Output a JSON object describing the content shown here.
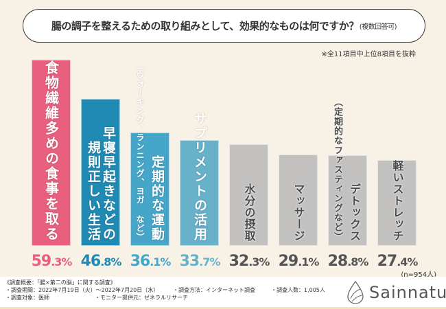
{
  "title": "腸の調子を整えるための取り組みとして、効果的なものは何ですか？",
  "title_suffix": "(複数回答可)",
  "note": "※全11項目中上位8項目を抜粋",
  "sample": "(n=954人)",
  "chart_data": {
    "type": "bar",
    "categories": [
      "食物繊維多めの食事を取る",
      "早寝早起きなどの規則正しい生活",
      "定期的な運動",
      "サプリメントの活用",
      "水分の摂取",
      "マッサージ",
      "デトックス",
      "軽いストレッチ"
    ],
    "sub_labels": [
      "",
      "",
      "（ウォーキング、ランニング、ヨガ など）",
      "",
      "",
      "",
      "（定期的なファスティングなど）",
      ""
    ],
    "values": [
      59.3,
      46.8,
      36.1,
      33.7,
      32.3,
      29.1,
      28.8,
      27.4
    ],
    "value_labels": [
      "59.3%",
      "46.8%",
      "36.1%",
      "33.7%",
      "32.3%",
      "29.1%",
      "28.8%",
      "27.4%"
    ],
    "colors": [
      "#e8607e",
      "#1f8ab3",
      "#45a6c9",
      "#67b1cb",
      "#c2c1c0",
      "#c2c1c0",
      "#c2c1c0",
      "#c2c1c0"
    ],
    "value_colors": [
      "#e8607e",
      "#1f8ab3",
      "#45a6c9",
      "#67b1cb",
      "#555555",
      "#555555",
      "#555555",
      "#555555"
    ],
    "unit": "%",
    "ylim": [
      0,
      60
    ]
  },
  "footer": {
    "heading": "《調査概要：「腸×第二の脳」に関する調査》",
    "period": "・調査期間：2022年7月19日（火）～2022年7月20日（水）",
    "method": "・調査方法：インターネット調査",
    "count": "・調査人数：1,005人",
    "target": "・調査対象：医師",
    "provider": "・モニター提供元：ゼネラルリサーチ",
    "logo": "Sainnatul"
  }
}
